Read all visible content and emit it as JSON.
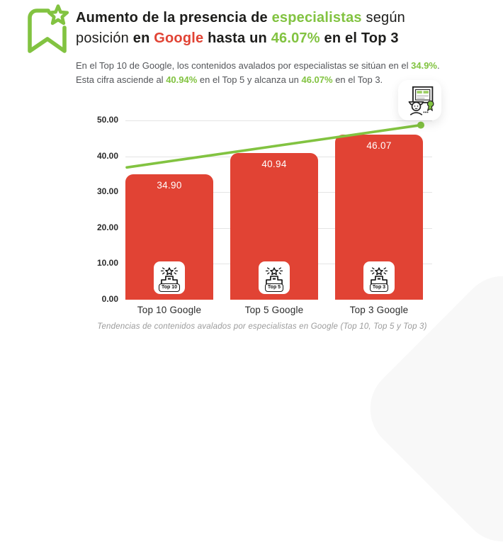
{
  "colors": {
    "green": "#82c341",
    "red": "#e14334",
    "dark": "#1d1d1b",
    "body_gray": "#54565a",
    "caption_gray": "#9b9b9b",
    "gridline": "#e4e4e4"
  },
  "header": {
    "icon": "bookmark-star-icon",
    "title": {
      "line1": {
        "part1": "Aumento de la presencia de ",
        "part2": "especialistas",
        "part3": " según"
      },
      "line2": {
        "part1": "posición ",
        "part2": "en ",
        "part3": "Google",
        "part4": " hasta un ",
        "part5": "46.07%",
        "part6": " en el Top 3"
      }
    },
    "subtitle": {
      "line1": {
        "part1": "En el Top 10 de Google, los contenidos avalados por especialistas se sitúan en el ",
        "part2": "34.9%",
        "part3": "."
      },
      "line2": {
        "part1": "Esta cifra asciende al ",
        "part2": "40.94%",
        "part3": " en el Top 5 y alcanza un ",
        "part4": "46.07%",
        "part5": " en el Top 3."
      }
    }
  },
  "specialist_icon": "specialist-certificate-icon",
  "chart_data": {
    "type": "bar",
    "title": "",
    "xlabel": "",
    "ylabel": "",
    "categories": [
      "Top 10 Google",
      "Top 5 Google",
      "Top 3 Google"
    ],
    "values": [
      34.9,
      40.94,
      46.07
    ],
    "value_labels": [
      "34.90",
      "40.94",
      "46.07"
    ],
    "badge_labels": [
      "Top 10",
      "Top 5",
      "Top 3"
    ],
    "y_ticks": [
      "50.00",
      "40.00",
      "30.00",
      "20.00",
      "10.00",
      "0.00"
    ],
    "ylim": [
      0,
      50
    ],
    "grid": true,
    "legend": false,
    "bar_color": "#e14334",
    "trend_line": {
      "color": "#82c341",
      "start_value": 36.9,
      "end_value": 48.7
    }
  },
  "caption": "Tendencias de contenidos avalados por especialistas en Google (Top 10, Top 5 y Top 3)"
}
